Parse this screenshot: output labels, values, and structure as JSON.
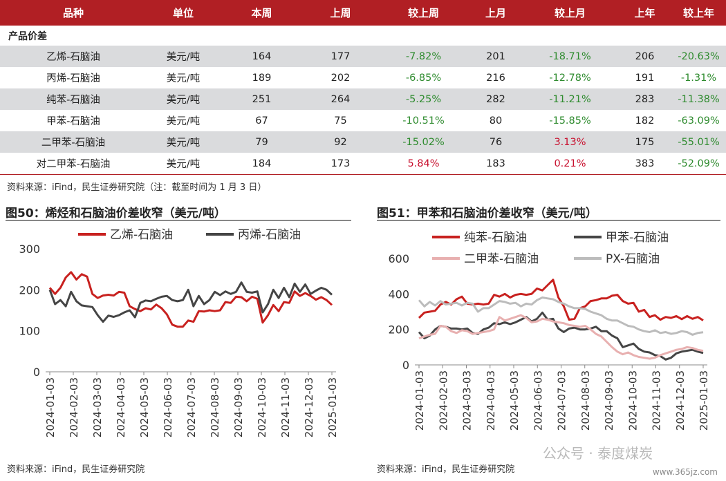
{
  "table": {
    "headers": [
      "品种",
      "单位",
      "本周",
      "上周",
      "较上周",
      "上月",
      "较上月",
      "上年",
      "较上年"
    ],
    "section_label": "产品价差",
    "rows": [
      [
        "乙烯-石脑油",
        "美元/吨",
        "164",
        "177",
        "-7.82%",
        "201",
        "-18.71%",
        "206",
        "-20.63%"
      ],
      [
        "丙烯-石脑油",
        "美元/吨",
        "189",
        "202",
        "-6.85%",
        "216",
        "-12.78%",
        "191",
        "-1.31%"
      ],
      [
        "纯苯-石脑油",
        "美元/吨",
        "251",
        "264",
        "-5.25%",
        "282",
        "-11.21%",
        "283",
        "-11.38%"
      ],
      [
        "甲苯-石脑油",
        "美元/吨",
        "67",
        "75",
        "-10.51%",
        "80",
        "-15.85%",
        "182",
        "-63.09%"
      ],
      [
        "二甲苯-石脑油",
        "美元/吨",
        "79",
        "92",
        "-15.02%",
        "76",
        "3.13%",
        "175",
        "-55.01%"
      ],
      [
        "对二甲苯-石脑油",
        "美元/吨",
        "184",
        "173",
        "5.84%",
        "183",
        "0.21%",
        "383",
        "-52.09%"
      ]
    ],
    "source": "资料来源：iFind，民生证券研究院（注：截至时间为 1 月 3 日）"
  },
  "colors": {
    "header_bg": "#b11f24",
    "shade": "#dadbdd",
    "negative": "#2e8b2e",
    "positive": "#c8102e"
  },
  "chart_data": [
    {
      "type": "line",
      "title": "图50：烯烃和石脑油价差收窄（美元/吨）",
      "source": "资料来源：iFind，民生证券研究院",
      "ylim": [
        0,
        300
      ],
      "yticks": [
        0,
        100,
        200,
        300
      ],
      "xticks": [
        "2024-01-03",
        "2024-02-03",
        "2024-03-03",
        "2024-04-03",
        "2024-05-03",
        "2024-06-03",
        "2024-07-03",
        "2024-08-03",
        "2024-09-03",
        "2024-10-03",
        "2024-11-03",
        "2024-12-03",
        "2025-01-03"
      ],
      "legend_position": "top",
      "series": [
        {
          "name": "乙烯-石脑油",
          "color": "#c8211f",
          "values": [
            205,
            190,
            205,
            230,
            243,
            225,
            238,
            232,
            190,
            180,
            186,
            188,
            186,
            195,
            193,
            160,
            153,
            148,
            155,
            152,
            164,
            155,
            140,
            115,
            110,
            110,
            125,
            122,
            148,
            147,
            150,
            148,
            150,
            170,
            168,
            183,
            182,
            172,
            183,
            178,
            120,
            138,
            163,
            148,
            170,
            168,
            196,
            185,
            192,
            185,
            176,
            182,
            175,
            163
          ]
        },
        {
          "name": "丙烯-石脑油",
          "color": "#454545",
          "values": [
            200,
            165,
            175,
            160,
            195,
            172,
            162,
            160,
            158,
            138,
            122,
            137,
            134,
            138,
            145,
            150,
            133,
            168,
            174,
            172,
            178,
            183,
            185,
            175,
            172,
            175,
            200,
            160,
            185,
            165,
            175,
            195,
            187,
            196,
            190,
            195,
            218,
            195,
            193,
            196,
            145,
            165,
            200,
            180,
            205,
            182,
            215,
            195,
            213,
            190,
            198,
            205,
            200,
            188
          ]
        }
      ]
    },
    {
      "type": "line",
      "title": "图51：甲苯和石脑油价差收窄（美元/吨）",
      "source": "资料来源：iFind，民生证券研究院",
      "ylim": [
        0,
        600
      ],
      "yticks": [
        0,
        200,
        400,
        600
      ],
      "xticks": [
        "2024-01-03",
        "2024-02-03",
        "2024-03-03",
        "2024-04-03",
        "2024-05-03",
        "2024-06-03",
        "2024-07-03",
        "2024-08-03",
        "2024-09-03",
        "2024-10-03",
        "2024-11-03",
        "2024-12-03",
        "2025-01-03"
      ],
      "legend_position": "top",
      "series": [
        {
          "name": "纯苯-石脑油",
          "color": "#c8211f",
          "values": [
            265,
            295,
            300,
            305,
            340,
            355,
            340,
            370,
            385,
            345,
            340,
            345,
            340,
            345,
            395,
            385,
            400,
            380,
            395,
            400,
            395,
            400,
            430,
            420,
            450,
            480,
            380,
            330,
            255,
            260,
            320,
            330,
            360,
            365,
            375,
            375,
            390,
            395,
            360,
            345,
            350,
            300,
            310,
            270,
            280,
            255,
            270,
            265,
            275,
            258,
            275,
            260,
            270,
            251
          ]
        },
        {
          "name": "甲苯-石脑油",
          "color": "#454545",
          "values": [
            185,
            150,
            165,
            200,
            220,
            215,
            205,
            205,
            200,
            205,
            180,
            175,
            200,
            210,
            235,
            230,
            240,
            230,
            240,
            255,
            270,
            245,
            260,
            295,
            255,
            260,
            205,
            185,
            205,
            210,
            200,
            200,
            205,
            215,
            190,
            190,
            165,
            150,
            100,
            110,
            120,
            90,
            75,
            70,
            55,
            50,
            30,
            40,
            65,
            75,
            80,
            85,
            75,
            67
          ]
        },
        {
          "name": "二甲苯-石脑油",
          "color": "#e8b0b0",
          "values": [
            150,
            160,
            170,
            175,
            220,
            215,
            190,
            180,
            195,
            190,
            175,
            180,
            185,
            190,
            200,
            270,
            250,
            260,
            270,
            280,
            265,
            240,
            245,
            260,
            255,
            245,
            240,
            235,
            225,
            220,
            215,
            220,
            200,
            175,
            160,
            130,
            100,
            75,
            60,
            70,
            55,
            45,
            40,
            35,
            40,
            55,
            65,
            75,
            85,
            90,
            100,
            95,
            85,
            79
          ]
        },
        {
          "name": "PX-石脑油",
          "color": "#bcbcbc",
          "values": [
            365,
            330,
            355,
            335,
            360,
            340,
            345,
            350,
            335,
            350,
            345,
            300,
            320,
            320,
            340,
            360,
            355,
            345,
            350,
            330,
            345,
            340,
            365,
            380,
            375,
            370,
            355,
            345,
            330,
            320,
            320,
            315,
            300,
            290,
            280,
            260,
            250,
            250,
            235,
            220,
            215,
            200,
            190,
            185,
            195,
            180,
            185,
            175,
            180,
            190,
            185,
            170,
            180,
            184
          ]
        }
      ]
    }
  ],
  "watermark": "公众号 · 泰度煤炭",
  "site": "www.365jz.com"
}
